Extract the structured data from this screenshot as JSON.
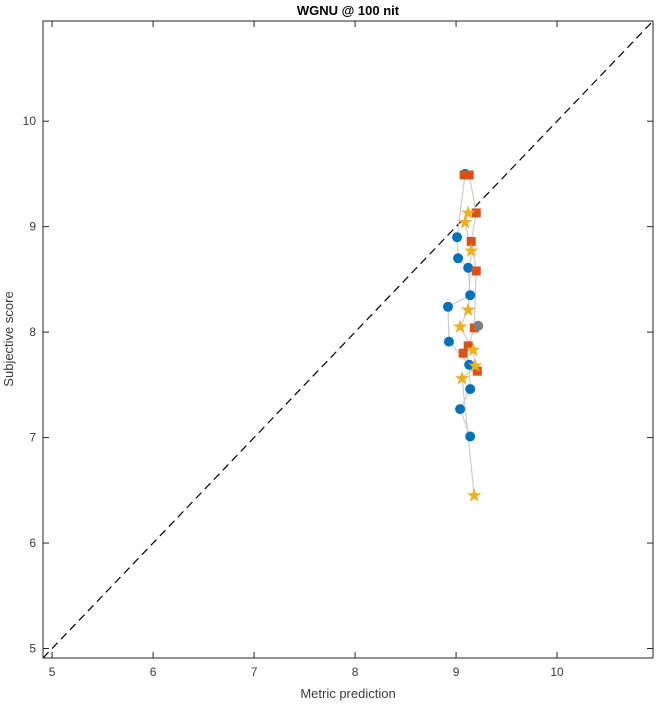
{
  "figure": {
    "title": "WGNU @ 100 nit",
    "xlabel": "Metric prediction",
    "ylabel": "Subjective score"
  },
  "chart_data": {
    "type": "scatter",
    "title": "WGNU @ 100 nit",
    "xlabel": "Metric prediction",
    "ylabel": "Subjective score",
    "xlim": [
      4.91,
      10.95
    ],
    "ylim": [
      4.91,
      10.95
    ],
    "xticks": [
      5,
      6,
      7,
      8,
      9,
      10
    ],
    "yticks": [
      5,
      6,
      7,
      8,
      9,
      10
    ],
    "grid": false,
    "legend": "none",
    "reference_line": {
      "type": "identity y=x",
      "style": "dashed",
      "color": "#000000"
    },
    "connector_line_color": "#c9c9c9",
    "series": [
      {
        "name": "blue-circles",
        "marker": "circle",
        "color": "#0072BD",
        "points": [
          [
            9.09,
            9.5
          ],
          [
            9.01,
            8.9
          ],
          [
            9.02,
            8.7
          ],
          [
            9.12,
            8.61
          ],
          [
            9.14,
            8.35
          ],
          [
            8.92,
            8.24
          ],
          [
            8.93,
            7.91
          ],
          [
            9.13,
            7.69
          ],
          [
            9.14,
            7.46
          ],
          [
            9.04,
            7.27
          ],
          [
            9.14,
            7.01
          ]
        ]
      },
      {
        "name": "orange-squares",
        "marker": "square",
        "color": "#D95319",
        "points": [
          [
            9.08,
            9.49
          ],
          [
            9.13,
            9.49
          ],
          [
            9.2,
            9.13
          ],
          [
            9.15,
            8.86
          ],
          [
            9.2,
            8.58
          ],
          [
            9.18,
            8.04
          ],
          [
            9.12,
            7.87
          ],
          [
            9.07,
            7.8
          ],
          [
            9.21,
            7.63
          ]
        ]
      },
      {
        "name": "yellow-stars",
        "marker": "star",
        "color": "#EDB120",
        "points": [
          [
            9.12,
            9.13
          ],
          [
            9.09,
            9.04
          ],
          [
            9.15,
            8.77
          ],
          [
            9.12,
            8.21
          ],
          [
            9.04,
            8.05
          ],
          [
            9.17,
            7.83
          ],
          [
            9.19,
            7.68
          ],
          [
            9.06,
            7.56
          ],
          [
            9.18,
            6.45
          ]
        ]
      },
      {
        "name": "gray-circle",
        "marker": "circle",
        "color": "#7F7F7F",
        "points": [
          [
            9.22,
            8.06
          ]
        ]
      }
    ]
  },
  "colors": {
    "axis_box": "#262626",
    "tick": "#262626",
    "background": "#ffffff"
  }
}
